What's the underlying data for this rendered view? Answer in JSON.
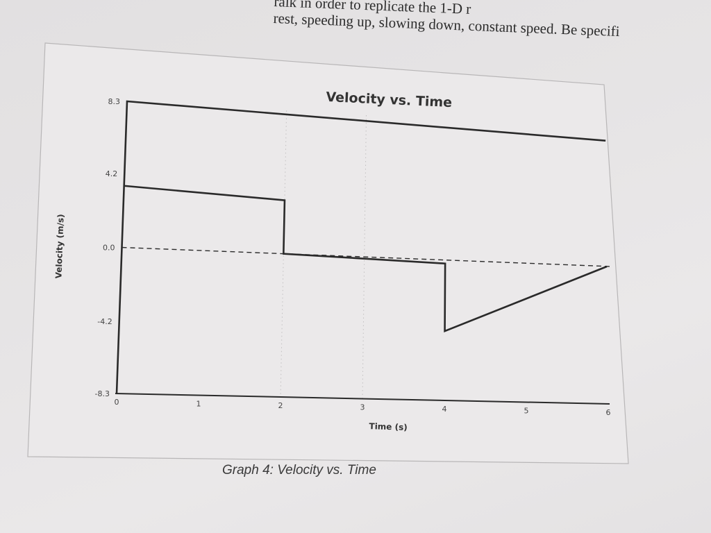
{
  "page": {
    "top_text_line1": "ralk in order to replicate the 1-D r",
    "top_text_line2": "rest, speeding up, slowing down, constant speed. Be specifi",
    "caption": "Graph 4: Velocity vs. Time"
  },
  "chart_data": {
    "type": "line",
    "title": "Velocity vs. Time",
    "xlabel": "Time (s)",
    "ylabel": "Velocity (m/s)",
    "xlim": [
      0,
      6
    ],
    "ylim": [
      -8.3,
      8.3
    ],
    "x_ticks": [
      0,
      1,
      2,
      3,
      4,
      5,
      6
    ],
    "x_tick_labels": [
      "0",
      "1",
      "2",
      "3",
      "4",
      "5",
      "6"
    ],
    "y_ticks": [
      8.3,
      4.2,
      0.0,
      -4.2,
      -8.3
    ],
    "y_tick_labels": [
      "8.3",
      "4.2",
      "0.0",
      "-4.2",
      "-8.3"
    ],
    "grid": "vertical dotted at x=2 and x=3",
    "reference_line": {
      "y": 0.0,
      "style": "dashed"
    },
    "line_color": "#2a2a2a",
    "series": [
      {
        "x": [
          0.0,
          0.0,
          6.0
        ],
        "y": [
          -8.3,
          8.3,
          7.6
        ]
      },
      {
        "x": [
          0.0,
          2.0,
          2.0,
          4.0,
          4.0,
          6.0
        ],
        "y": [
          3.5,
          3.1,
          0.0,
          -0.2,
          -4.2,
          0.0
        ]
      }
    ]
  }
}
